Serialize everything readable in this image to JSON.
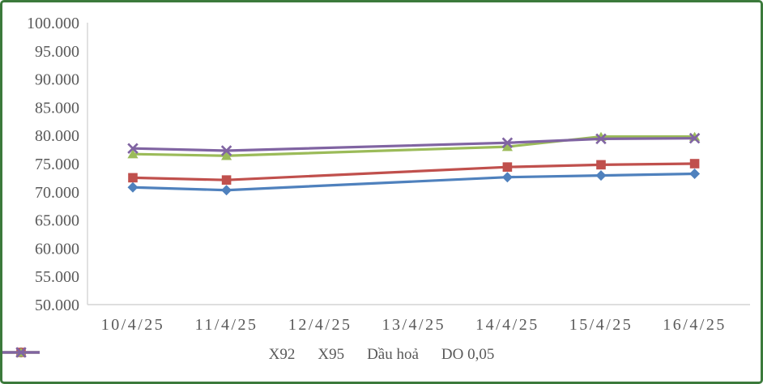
{
  "frame": {
    "border_color": "#3C7A3C",
    "background": "#FFFFFF",
    "axis_color": "#D4D4D4",
    "text_color": "#595959"
  },
  "chart_data": {
    "type": "line",
    "title": "",
    "xlabel": "",
    "ylabel": "",
    "grid": false,
    "legend_position": "bottom",
    "categories": [
      "10/4/25",
      "11/4/25",
      "12/4/25",
      "13/4/25",
      "14/4/25",
      "15/4/25",
      "16/4/25"
    ],
    "series": [
      {
        "name": "X92",
        "color": "#4F81BD",
        "marker": "diamond",
        "values": [
          70800,
          70300,
          null,
          null,
          72600,
          72900,
          73200
        ]
      },
      {
        "name": "X95",
        "color": "#C0504D",
        "marker": "square",
        "values": [
          72500,
          72100,
          null,
          null,
          74400,
          74800,
          75000
        ]
      },
      {
        "name": "Dầu hoả",
        "color": "#9BBB59",
        "marker": "triangle",
        "values": [
          76700,
          76400,
          null,
          null,
          78000,
          79800,
          79800
        ]
      },
      {
        "name": "DO 0,05",
        "color": "#8064A2",
        "marker": "x",
        "values": [
          77700,
          77300,
          null,
          null,
          78700,
          79400,
          79500
        ]
      }
    ],
    "y_axis": {
      "min": 50000,
      "max": 100000,
      "step": 5000,
      "tick_labels": [
        "50.000",
        "55.000",
        "60.000",
        "65.000",
        "70.000",
        "75.000",
        "80.000",
        "85.000",
        "90.000",
        "95.000",
        "100.000"
      ]
    }
  }
}
